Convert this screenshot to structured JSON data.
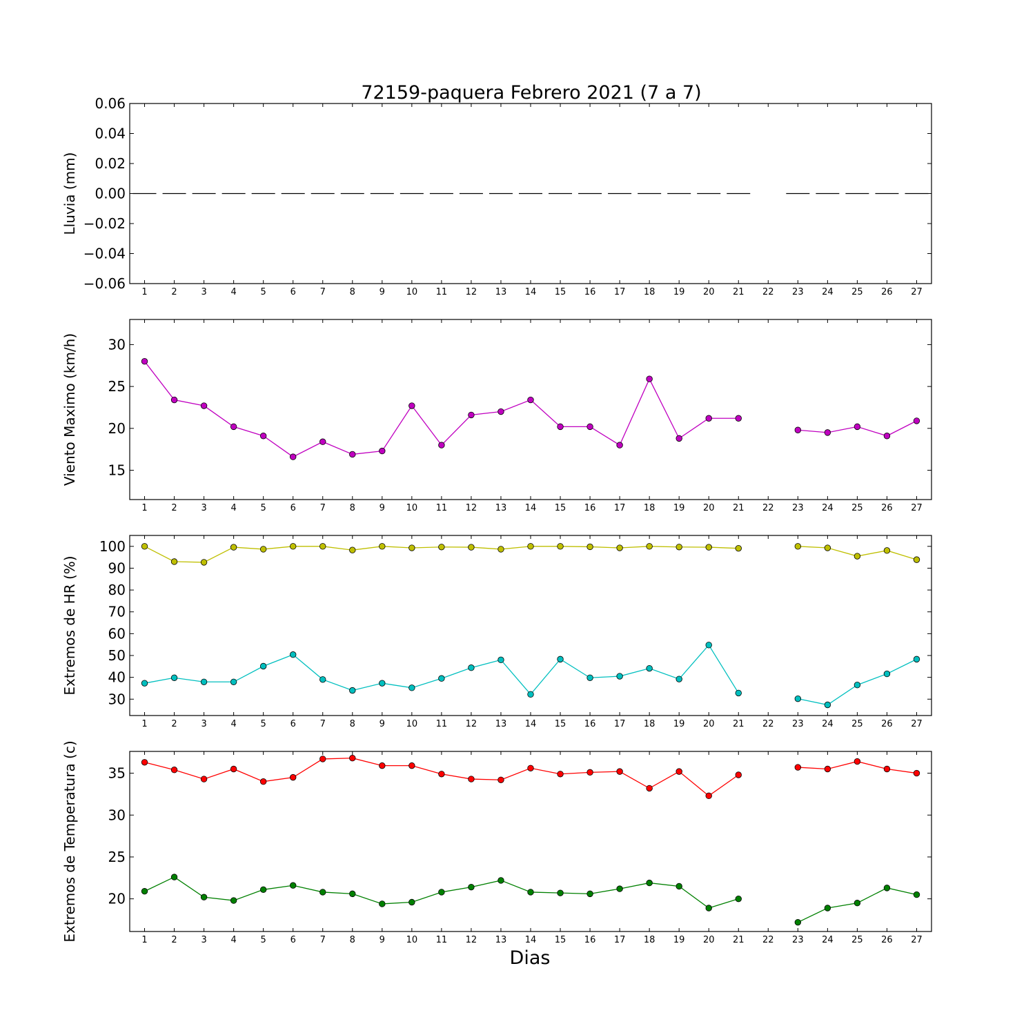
{
  "chart_data": {
    "title": "72159-paquera Febrero 2021  (7 a 7)",
    "xlabel": "Dias",
    "x_ticks": [
      1,
      2,
      3,
      4,
      5,
      6,
      7,
      8,
      9,
      10,
      11,
      12,
      13,
      14,
      15,
      16,
      17,
      18,
      19,
      20,
      21,
      22,
      23,
      24,
      25,
      26,
      27
    ],
    "xlim": [
      0.5,
      27.5
    ],
    "panels": [
      {
        "id": "lluvia",
        "type": "rain-dashes",
        "ylabel": "Lluvia (mm)",
        "ylim": [
          -0.06,
          0.06
        ],
        "y_ticks": [
          0.06,
          0.04,
          0.02,
          0.0,
          -0.02,
          -0.04,
          -0.06
        ],
        "y_tick_labels": [
          "0.06",
          "0.04",
          "0.02",
          "0.00",
          "−0.02",
          "−0.04",
          "−0.06"
        ],
        "series": [
          {
            "color": "#000000",
            "values": [
              0,
              0,
              0,
              0,
              0,
              0,
              0,
              0,
              0,
              0,
              0,
              0,
              0,
              0,
              0,
              0,
              0,
              0,
              0,
              0,
              0,
              null,
              0,
              0,
              0,
              0,
              0
            ]
          }
        ]
      },
      {
        "id": "viento",
        "type": "line",
        "ylabel": "Viento Maximo (km/h)",
        "ylim": [
          11.5,
          33
        ],
        "y_ticks": [
          15,
          20,
          25,
          30
        ],
        "y_tick_labels": [
          "15",
          "20",
          "25",
          "30"
        ],
        "series": [
          {
            "color": "#c000c0",
            "values": [
              28.0,
              23.4,
              22.7,
              20.2,
              19.1,
              16.6,
              18.4,
              16.9,
              17.3,
              22.7,
              18.0,
              21.6,
              22.0,
              23.4,
              20.2,
              20.2,
              18.0,
              25.9,
              18.8,
              21.2,
              21.2,
              null,
              19.8,
              19.5,
              20.2,
              19.1,
              20.9
            ]
          }
        ]
      },
      {
        "id": "hr",
        "type": "line",
        "ylabel": "Extremos de HR (%)",
        "ylim": [
          22.5,
          105
        ],
        "y_ticks": [
          30,
          40,
          50,
          60,
          70,
          80,
          90,
          100
        ],
        "y_tick_labels": [
          "30",
          "40",
          "50",
          "60",
          "70",
          "80",
          "90",
          "100"
        ],
        "series": [
          {
            "color": "#bfbf00",
            "values": [
              100,
              93,
              92.7,
              99.6,
              98.7,
              100,
              100,
              98.3,
              100,
              99.3,
              99.7,
              99.6,
              98.7,
              100,
              100,
              99.8,
              99.3,
              100,
              99.7,
              99.6,
              99.1,
              null,
              100,
              99.3,
              95.5,
              98.1,
              93.9
            ]
          },
          {
            "color": "#00bfbf",
            "values": [
              37.3,
              39.8,
              37.9,
              37.9,
              45.1,
              50.4,
              39.0,
              34.0,
              37.3,
              35.2,
              39.5,
              44.4,
              48.0,
              32.2,
              48.3,
              39.8,
              40.5,
              44.1,
              39.2,
              54.8,
              32.8,
              null,
              30.2,
              27.4,
              36.5,
              41.6,
              48.3
            ]
          }
        ]
      },
      {
        "id": "temperatura",
        "type": "line",
        "ylabel": "Extremos de Temperatura (c)",
        "ylim": [
          16.1,
          37.6
        ],
        "y_ticks": [
          20,
          25,
          30,
          35
        ],
        "y_tick_labels": [
          "20",
          "25",
          "30",
          "35"
        ],
        "series": [
          {
            "color": "#ff0000",
            "values": [
              36.3,
              35.4,
              34.3,
              35.5,
              34.0,
              34.5,
              36.7,
              36.8,
              35.9,
              35.9,
              34.9,
              34.3,
              34.2,
              35.6,
              34.9,
              35.1,
              35.2,
              33.2,
              35.2,
              32.3,
              34.8,
              null,
              35.7,
              35.5,
              36.4,
              35.5,
              35.0
            ]
          },
          {
            "color": "#008000",
            "values": [
              20.9,
              22.6,
              20.2,
              19.8,
              21.1,
              21.6,
              20.8,
              20.6,
              19.4,
              19.6,
              20.8,
              21.4,
              22.2,
              20.8,
              20.7,
              20.6,
              21.2,
              21.9,
              21.5,
              18.9,
              20.0,
              null,
              17.2,
              18.9,
              19.5,
              21.3,
              20.5
            ]
          }
        ]
      }
    ]
  }
}
